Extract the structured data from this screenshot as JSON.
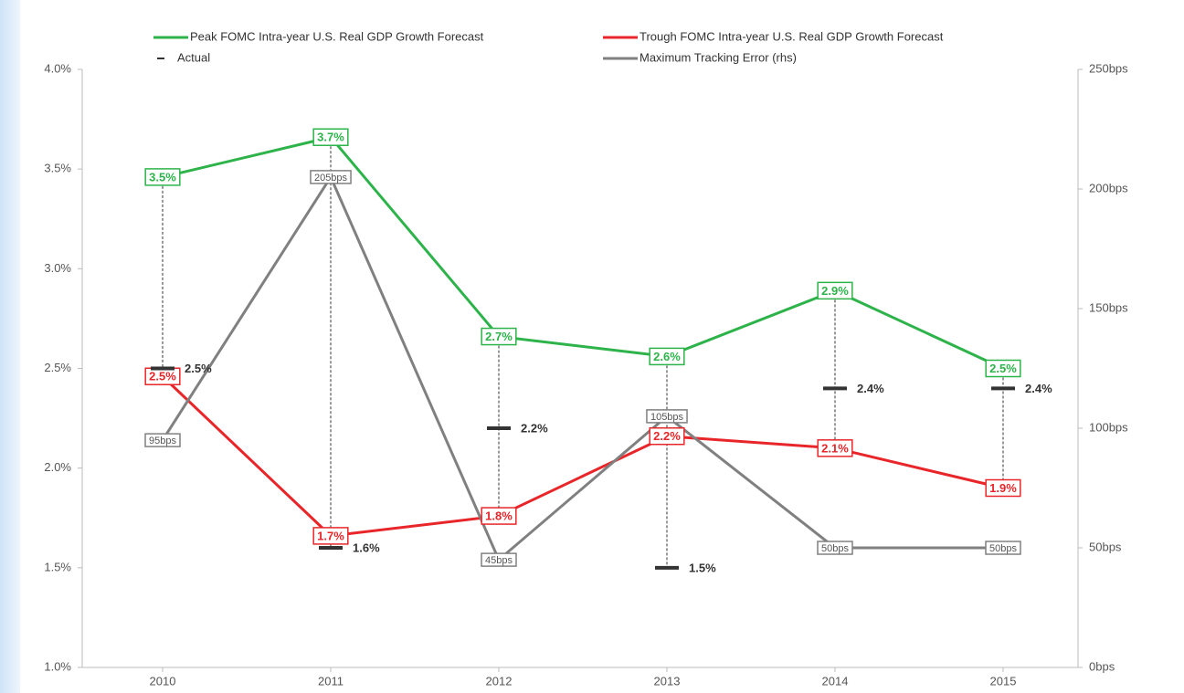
{
  "chart_data": {
    "type": "line",
    "categories": [
      "2010",
      "2011",
      "2012",
      "2013",
      "2014",
      "2015"
    ],
    "series": [
      {
        "name": "Peak FOMC Intra-year U.S. Real GDP Growth Forecast",
        "color": "#2db34a",
        "type": "line",
        "values": [
          3.46,
          3.66,
          2.66,
          2.56,
          2.89,
          2.5
        ],
        "value_labels": [
          "3.5%",
          "3.7%",
          "2.7%",
          "2.6%",
          "2.9%",
          "2.5%"
        ]
      },
      {
        "name": "Trough FOMC Intra-year U.S. Real GDP Growth Forecast",
        "color": "#e8262a",
        "type": "line",
        "values": [
          2.46,
          1.66,
          1.76,
          2.16,
          2.1,
          1.9
        ],
        "value_labels": [
          "2.5%",
          "1.7%",
          "1.8%",
          "2.2%",
          "2.1%",
          "1.9%"
        ]
      },
      {
        "name": "Actual",
        "color": "#333333",
        "type": "scatter",
        "values": [
          2.5,
          1.6,
          2.2,
          1.5,
          2.4,
          2.4
        ],
        "value_labels": [
          "2.5%",
          "1.6%",
          "2.2%",
          "1.5%",
          "2.4%",
          "2.4%"
        ]
      },
      {
        "name": "Maximum Tracking Error (rhs)",
        "color": "#808080",
        "type": "line",
        "axis": "y2",
        "values": [
          95,
          205,
          45,
          105,
          50,
          50
        ],
        "value_labels": [
          "95bps",
          "205bps",
          "45bps",
          "105bps",
          "50bps",
          "50bps"
        ]
      }
    ],
    "ylim": [
      1.0,
      4.0
    ],
    "yticks": [
      {
        "value": 1.0,
        "label": "1.0%"
      },
      {
        "value": 1.5,
        "label": "1.5%"
      },
      {
        "value": 2.0,
        "label": "2.0%"
      },
      {
        "value": 2.5,
        "label": "2.5%"
      },
      {
        "value": 3.0,
        "label": "3.0%"
      },
      {
        "value": 3.5,
        "label": "3.5%"
      },
      {
        "value": 4.0,
        "label": "4.0%"
      }
    ],
    "y2lim": [
      0,
      250
    ],
    "y2ticks": [
      {
        "value": 0,
        "label": "0bps"
      },
      {
        "value": 50,
        "label": "50bps"
      },
      {
        "value": 100,
        "label": "100bps"
      },
      {
        "value": 150,
        "label": "150bps"
      },
      {
        "value": 200,
        "label": "200bps"
      },
      {
        "value": 250,
        "label": "250bps"
      }
    ]
  }
}
